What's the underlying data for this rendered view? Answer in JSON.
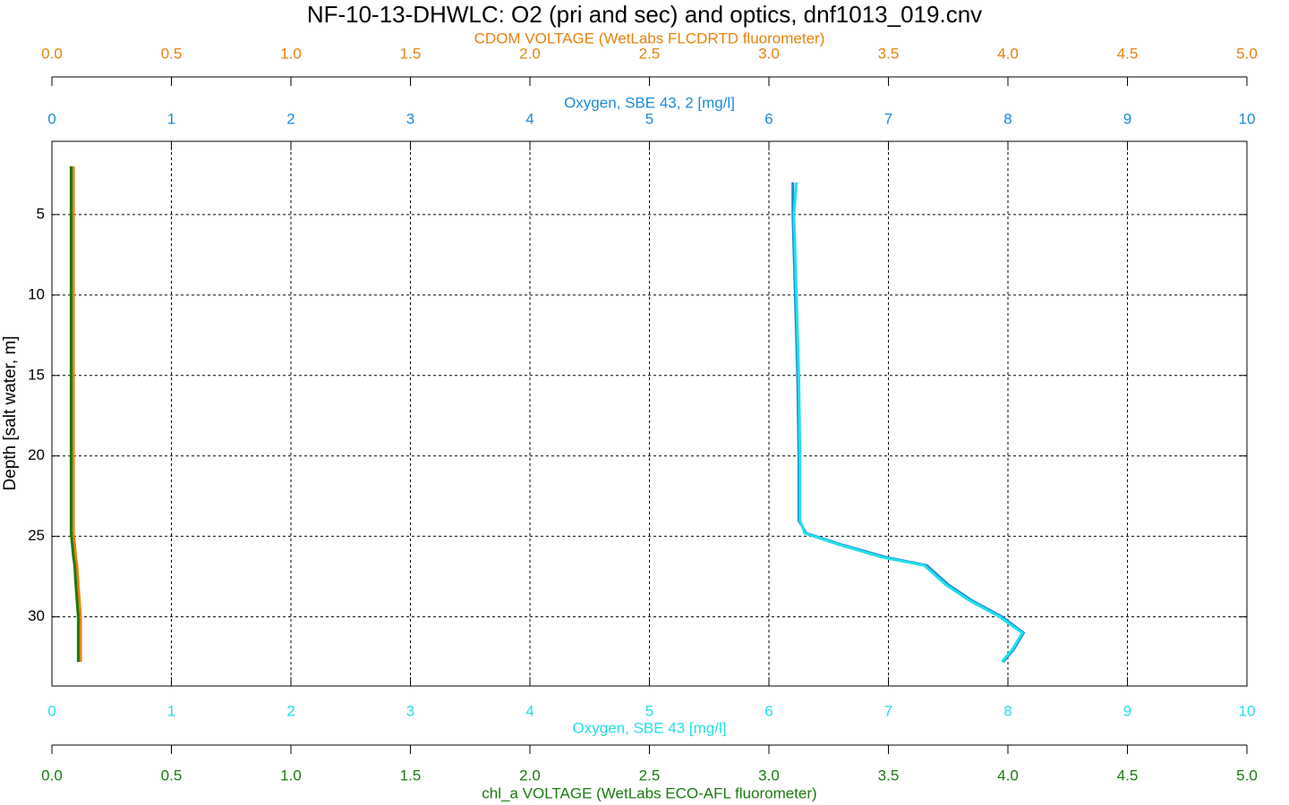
{
  "chart_data": {
    "type": "profile",
    "title": "NF-10-13-DHWLC: O2 (pri and sec) and optics, dnf1013_019.cnv",
    "y_label": "Depth [salt water, m]",
    "y_inverted": true,
    "grid": true,
    "ylim": [
      0.45,
      34.3
    ],
    "yticks": [
      5,
      10,
      15,
      20,
      25,
      30
    ],
    "y": [
      2,
      3,
      5,
      10,
      15,
      20,
      24,
      24.8,
      25.5,
      26.3,
      26.8,
      28,
      29,
      30,
      31,
      32,
      32.8
    ],
    "x_axes": [
      {
        "label": "CDOM VOLTAGE (WetLabs FLCDRTD fluorometer)",
        "color": "#e8820c",
        "side": "top",
        "xlim": [
          0,
          5
        ],
        "xticks": [
          {
            "value": 0,
            "label": "0.0"
          },
          0.5,
          {
            "value": 1,
            "label": "1.0"
          },
          1.5,
          {
            "value": 2,
            "label": "2.0"
          },
          2.5,
          {
            "value": 3,
            "label": "3.0"
          },
          3.5,
          {
            "value": 4,
            "label": "4.0"
          },
          4.5,
          {
            "value": 5,
            "label": "5.0"
          }
        ],
        "values": [
          0.09,
          0.09,
          0.09,
          0.09,
          0.09,
          0.09,
          0.09,
          0.09,
          0.095,
          0.1,
          0.105,
          0.11,
          0.115,
          0.12,
          0.12,
          0.12,
          0.12
        ]
      },
      {
        "label": "Oxygen, SBE 43, 2 [mg/l]",
        "color": "#1a8ad8",
        "side": "top",
        "xlim": [
          0,
          10
        ],
        "xticks": [
          0,
          1,
          2,
          3,
          4,
          5,
          6,
          7,
          8,
          9,
          10
        ],
        "grid": true,
        "values": [
          null,
          6.2,
          6.2,
          6.22,
          6.24,
          6.25,
          6.25,
          6.31,
          6.6,
          6.98,
          7.32,
          7.5,
          7.7,
          7.95,
          8.13,
          8.05,
          7.96
        ]
      },
      {
        "label": "Oxygen, SBE 43 [mg/l]",
        "color": "#22e0e8",
        "side": "bottom",
        "xlim": [
          0,
          10
        ],
        "xticks": [
          0,
          1,
          2,
          3,
          4,
          5,
          6,
          7,
          8,
          9,
          10
        ],
        "values": [
          null,
          6.23,
          6.21,
          6.23,
          6.25,
          6.26,
          6.26,
          6.3,
          6.58,
          6.95,
          7.3,
          7.48,
          7.68,
          7.93,
          8.12,
          8.04,
          7.95
        ]
      },
      {
        "label": "chl_a VOLTAGE (WetLabs ECO-AFL fluorometer)",
        "color": "#1a7a10",
        "side": "bottom",
        "xlim": [
          0,
          5
        ],
        "xticks": [
          {
            "value": 0,
            "label": "0.0"
          },
          0.5,
          {
            "value": 1,
            "label": "1.0"
          },
          1.5,
          {
            "value": 2,
            "label": "2.0"
          },
          2.5,
          {
            "value": 3,
            "label": "3.0"
          },
          3.5,
          {
            "value": 4,
            "label": "4.0"
          },
          4.5,
          {
            "value": 5,
            "label": "5.0"
          }
        ],
        "values": [
          0.08,
          0.08,
          0.08,
          0.08,
          0.08,
          0.08,
          0.08,
          0.08,
          0.085,
          0.09,
          0.095,
          0.1,
          0.105,
          0.11,
          0.11,
          0.11,
          0.11
        ]
      }
    ]
  }
}
